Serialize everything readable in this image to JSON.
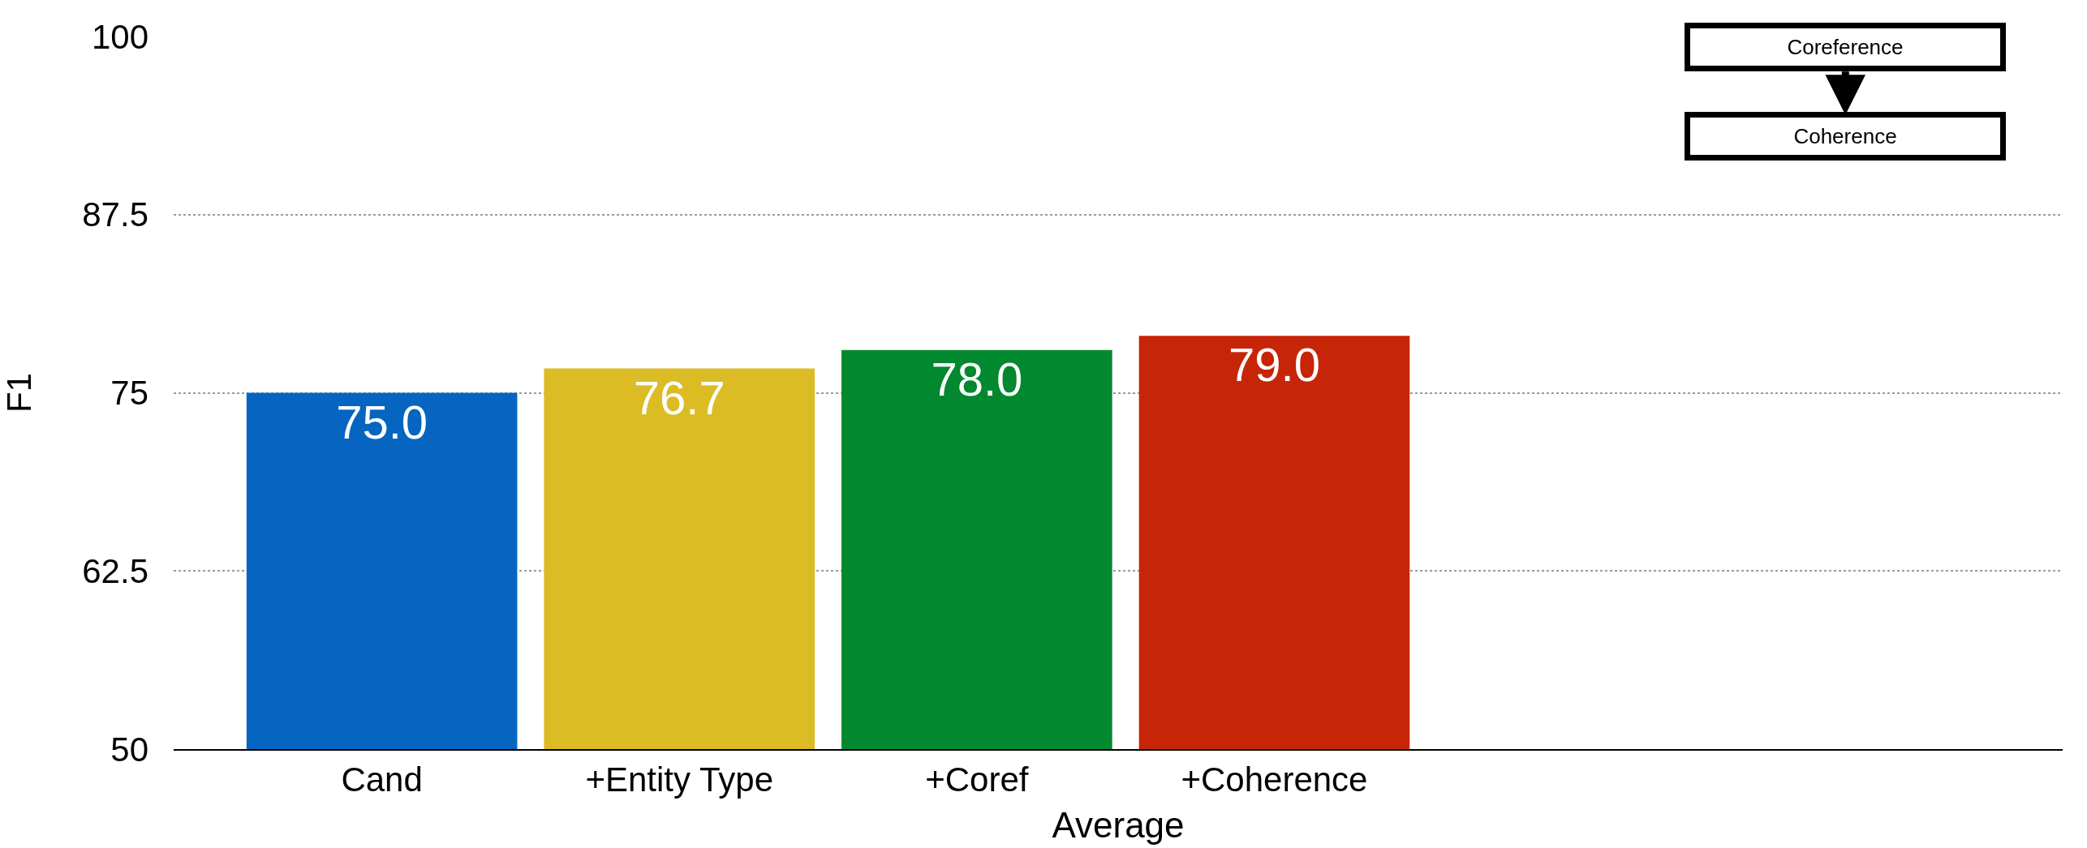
{
  "chart_data": {
    "type": "bar",
    "xlabel": "Average",
    "ylabel": "F1",
    "categories": [
      "Cand",
      "+Entity Type",
      "+Coref",
      "+Coherence",
      null,
      null
    ],
    "values": [
      75.0,
      76.7,
      78.0,
      79.0,
      null,
      null
    ],
    "colors": [
      "#0565c0",
      "#dbbc24",
      "#02882e",
      "#c72508",
      "#ffffff",
      "#ffffff"
    ],
    "value_labels": [
      "75.0",
      "76.7",
      "78.0",
      "79.0",
      null,
      null
    ],
    "ylim": [
      50,
      100
    ],
    "yticks": [
      50,
      62.5,
      75,
      87.5,
      100
    ],
    "grid": "y",
    "annotations": [
      "Coreference",
      "Coherence"
    ]
  }
}
